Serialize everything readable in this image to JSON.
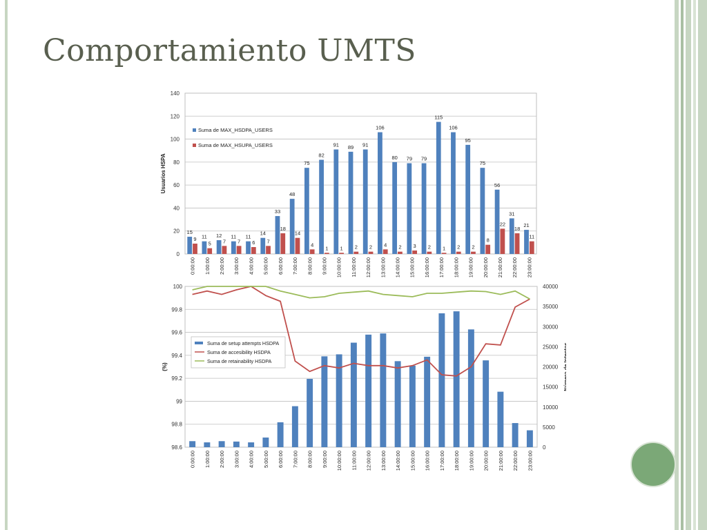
{
  "slide": {
    "title": "Comportamiento UMTS"
  },
  "chart_data": [
    {
      "type": "bar",
      "ylabel": "Usuarios HSPA",
      "ylim": [
        0,
        140
      ],
      "yticks": [
        0,
        20,
        40,
        60,
        80,
        100,
        120,
        140
      ],
      "grid": true,
      "legend_position": "top-left",
      "categories": [
        "0:00:00",
        "1:00:00",
        "2:00:00",
        "3:00:00",
        "4:00:00",
        "5:00:00",
        "6:00:00",
        "7:00:00",
        "8:00:00",
        "9:00:00",
        "10:00:00",
        "11:00:00",
        "12:00:00",
        "13:00:00",
        "14:00:00",
        "15:00:00",
        "16:00:00",
        "17:00:00",
        "18:00:00",
        "19:00:00",
        "20:00:00",
        "21:00:00",
        "22:00:00",
        "23:00:00"
      ],
      "series": [
        {
          "name": "Suma de MAX_HSDPA_USERS",
          "color": "#4f81bd",
          "values": [
            15,
            11,
            12,
            11,
            11,
            14,
            33,
            48,
            75,
            82,
            91,
            89,
            91,
            106,
            80,
            79,
            79,
            115,
            106,
            95,
            75,
            56,
            31,
            21
          ]
        },
        {
          "name": "Suma de MAX_HSUPA_USERS",
          "color": "#c0504d",
          "values": [
            9,
            5,
            7,
            7,
            6,
            7,
            18,
            14,
            4,
            1,
            1,
            2,
            2,
            4,
            2,
            3,
            2,
            1,
            2,
            2,
            8,
            22,
            18,
            11
          ]
        }
      ]
    },
    {
      "type": "bar+line",
      "ylabel": "(%)",
      "y2label": "Número de Intentos",
      "ylim": [
        98.6,
        100
      ],
      "yticks": [
        98.6,
        98.8,
        99,
        99.2,
        99.4,
        99.6,
        99.8,
        100
      ],
      "y2lim": [
        0,
        40000
      ],
      "y2ticks": [
        0,
        5000,
        10000,
        15000,
        20000,
        25000,
        30000,
        35000,
        40000
      ],
      "grid": true,
      "legend_position": "left",
      "categories": [
        "0:00:00",
        "1:00:00",
        "2:00:00",
        "3:00:00",
        "4:00:00",
        "5:00:00",
        "6:00:00",
        "7:00:00",
        "8:00:00",
        "9:00:00",
        "10:00:00",
        "11:00:00",
        "12:00:00",
        "13:00:00",
        "14:00:00",
        "15:00:00",
        "16:00:00",
        "17:00:00",
        "18:00:00",
        "19:00:00",
        "20:00:00",
        "21:00:00",
        "22:00:00",
        "23:00:00"
      ],
      "series": [
        {
          "name": "Suma de setup attempts HSDPA",
          "type": "bar",
          "axis": "right",
          "color": "#4f81bd",
          "values": [
            1500,
            1200,
            1500,
            1400,
            1200,
            2400,
            6200,
            10200,
            17000,
            22600,
            23100,
            26000,
            28000,
            28300,
            21400,
            20300,
            22500,
            33300,
            33800,
            29300,
            21600,
            13800,
            6000,
            4200
          ]
        },
        {
          "name": "Suma de accesibility HSDPA",
          "type": "line",
          "axis": "left",
          "color": "#c0504d",
          "values": [
            99.93,
            99.96,
            99.93,
            99.97,
            100.0,
            99.92,
            99.87,
            99.35,
            99.26,
            99.31,
            99.29,
            99.33,
            99.31,
            99.31,
            99.29,
            99.31,
            99.36,
            99.23,
            99.22,
            99.3,
            99.5,
            99.49,
            99.82,
            99.89
          ]
        },
        {
          "name": "Suma de retainability HSDPA",
          "type": "line",
          "axis": "left",
          "color": "#9bbb59",
          "values": [
            99.97,
            100.0,
            100.0,
            100.0,
            100.0,
            100.0,
            99.96,
            99.93,
            99.9,
            99.91,
            99.94,
            99.95,
            99.96,
            99.93,
            99.92,
            99.91,
            99.94,
            99.94,
            99.95,
            99.96,
            99.955,
            99.93,
            99.96,
            99.89
          ]
        }
      ]
    }
  ]
}
